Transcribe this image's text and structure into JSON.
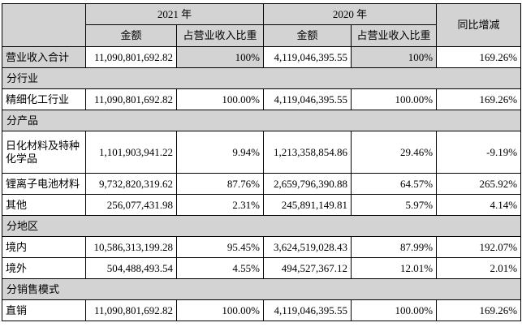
{
  "colors": {
    "shade": "#d3d3d3",
    "border": "#000000",
    "text": "#000000"
  },
  "header": {
    "year_2021": "2021 年",
    "year_2020": "2020 年",
    "amount": "金额",
    "share": "占营业收入比重",
    "yoy": "同比增减"
  },
  "rows": [
    {
      "type": "data",
      "label": "营业收入合计",
      "amount_2021": "11,090,801,692.82",
      "share_2021": "100%",
      "amount_2020": "4,119,046,395.55",
      "share_2020": "100%",
      "yoy": "169.26%"
    },
    {
      "type": "section",
      "label": "分行业"
    },
    {
      "type": "data",
      "label": "精细化工行业",
      "amount_2021": "11,090,801,692.82",
      "share_2021": "100.00%",
      "amount_2020": "4,119,046,395.55",
      "share_2020": "100.00%",
      "yoy": "169.26%"
    },
    {
      "type": "section",
      "label": "分产品"
    },
    {
      "type": "data",
      "label": "日化材料及特种化学品",
      "amount_2021": "1,101,903,941.22",
      "share_2021": "9.94%",
      "amount_2020": "1,213,358,854.86",
      "share_2020": "29.46%",
      "yoy": "-9.19%"
    },
    {
      "type": "data",
      "label": "锂离子电池材料",
      "amount_2021": "9,732,820,319.62",
      "share_2021": "87.76%",
      "amount_2020": "2,659,796,390.88",
      "share_2020": "64.57%",
      "yoy": "265.92%"
    },
    {
      "type": "data",
      "label": "其他",
      "amount_2021": "256,077,431.98",
      "share_2021": "2.31%",
      "amount_2020": "245,891,149.81",
      "share_2020": "5.97%",
      "yoy": "4.14%"
    },
    {
      "type": "section",
      "label": "分地区"
    },
    {
      "type": "data",
      "label": "境内",
      "amount_2021": "10,586,313,199.28",
      "share_2021": "95.45%",
      "amount_2020": "3,624,519,028.43",
      "share_2020": "87.99%",
      "yoy": "192.07%"
    },
    {
      "type": "data",
      "label": "境外",
      "amount_2021": "504,488,493.54",
      "share_2021": "4.55%",
      "amount_2020": "494,527,367.12",
      "share_2020": "12.01%",
      "yoy": "2.01%"
    },
    {
      "type": "section",
      "label": "分销售模式"
    },
    {
      "type": "data",
      "label": "直销",
      "amount_2021": "11,090,801,692.82",
      "share_2021": "100.00%",
      "amount_2020": "4,119,046,395.55",
      "share_2020": "100.00%",
      "yoy": "169.26%"
    }
  ]
}
